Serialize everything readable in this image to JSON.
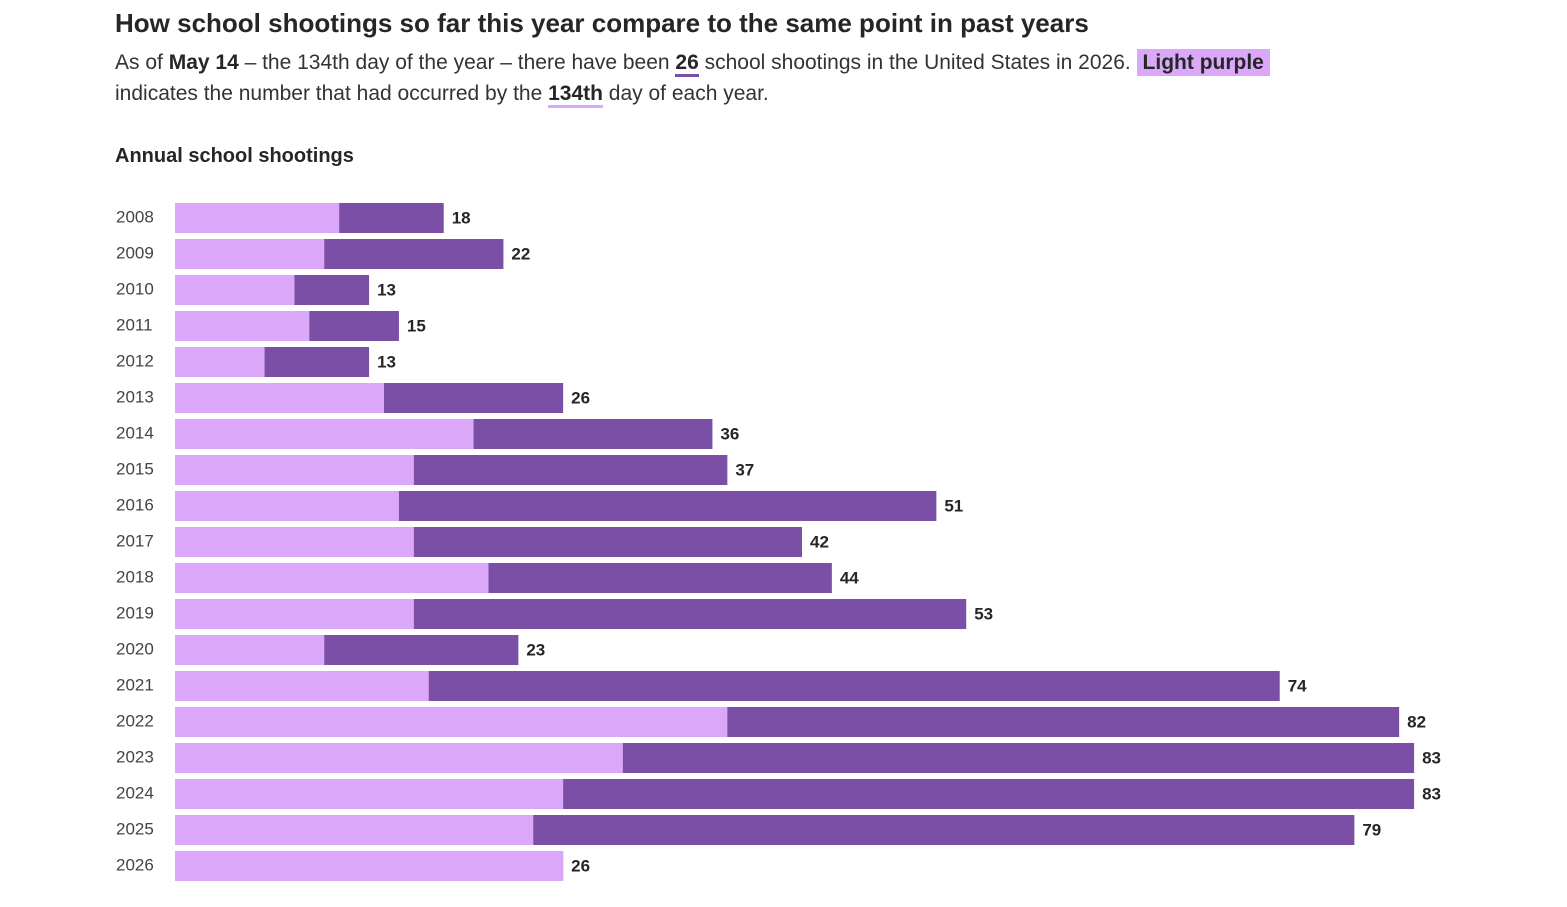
{
  "chart_data": {
    "type": "bar",
    "title": "How school shootings so far this year compare to the same point in past years",
    "subtitle_parts": [
      "As of ",
      "May 14",
      " – the 134th day of the year – there have been ",
      "26",
      " school shootings in the United States in 2026. ",
      "Light purple",
      " indicates the number that had occurred by the ",
      "134th",
      " day of each year."
    ],
    "chart_title": "Annual school shootings",
    "categories": [
      "2008",
      "2009",
      "2010",
      "2011",
      "2012",
      "2013",
      "2014",
      "2015",
      "2016",
      "2017",
      "2018",
      "2019",
      "2020",
      "2021",
      "2022",
      "2023",
      "2024",
      "2025",
      "2026"
    ],
    "series": [
      {
        "color": "#7b4fa6",
        "values": [
          18,
          22,
          13,
          15,
          13,
          26,
          36,
          37,
          51,
          42,
          44,
          53,
          23,
          74,
          82,
          83,
          83,
          79,
          26
        ]
      },
      {
        "color": "#dba8f9",
        "values": [
          11,
          10,
          8,
          9,
          6,
          14,
          20,
          16,
          15,
          16,
          21,
          16,
          10,
          17,
          37,
          30,
          26,
          24,
          26
        ]
      }
    ],
    "xlim": [
      0,
      84
    ]
  }
}
